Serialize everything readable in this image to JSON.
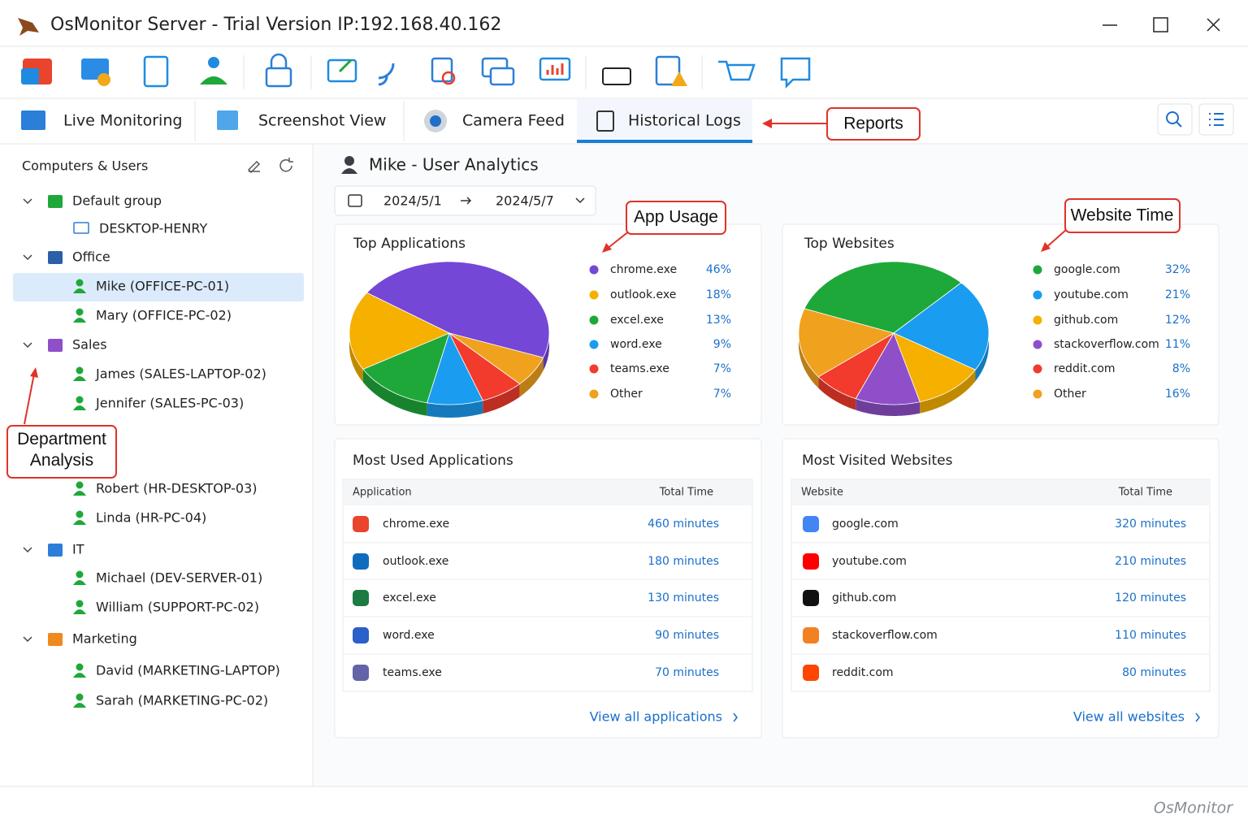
{
  "window": {
    "title": "OsMonitor Server - Trial Version IP:192.168.40.162"
  },
  "tabs": [
    "Live Monitoring",
    "Screenshot View",
    "Camera Feed",
    "Historical Logs"
  ],
  "active_tab": 3,
  "callouts": {
    "reports": "Reports",
    "app_usage": "App Usage",
    "website_time": "Website Time",
    "department_analysis": "Department Analysis"
  },
  "sidebar": {
    "title": "Computers & Users",
    "groups": [
      {
        "name": "Default group",
        "members": [
          "DESKTOP-HENRY"
        ]
      },
      {
        "name": "Office",
        "members": [
          "Mike (OFFICE-PC-01)",
          "Mary (OFFICE-PC-02)"
        ]
      },
      {
        "name": "Sales",
        "members": [
          "James (SALES-LAPTOP-02)",
          "Jennifer (SALES-PC-03)"
        ]
      },
      {
        "members": [
          "Robert (HR-DESKTOP-03)",
          "Linda (HR-PC-04)"
        ]
      },
      {
        "name": "IT",
        "members": [
          "Michael (DEV-SERVER-01)",
          "William (SUPPORT-PC-02)"
        ]
      },
      {
        "name": "Marketing",
        "members": [
          "David (MARKETING-LAPTOP)",
          "Sarah (MARKETING-PC-02)"
        ]
      }
    ]
  },
  "user_analytics": {
    "heading": "Mike - User Analytics",
    "date_from": "2024/5/1",
    "date_to": "2024/5/7"
  },
  "chart_data": [
    {
      "type": "pie",
      "title": "Top Applications",
      "categories": [
        "chrome.exe",
        "outlook.exe",
        "excel.exe",
        "word.exe",
        "teams.exe",
        "Other"
      ],
      "values": [
        46,
        18,
        13,
        9,
        7,
        7
      ],
      "value_labels": [
        "46%",
        "18%",
        "13%",
        "9%",
        "7%",
        "7%"
      ],
      "colors": [
        "#7447d6",
        "#f5b000",
        "#1fa83a",
        "#1a9cf0",
        "#f23b2c",
        "#f0a11e"
      ]
    },
    {
      "type": "pie",
      "title": "Top Websites",
      "categories": [
        "google.com",
        "youtube.com",
        "github.com",
        "stackoverflow.com",
        "reddit.com",
        "Other"
      ],
      "values": [
        32,
        21,
        12,
        11,
        8,
        16
      ],
      "value_labels": [
        "32%",
        "21%",
        "12%",
        "11%",
        "8%",
        "16%"
      ],
      "colors": [
        "#1fa83a",
        "#1a9cf0",
        "#f5b000",
        "#8e4fc9",
        "#f23b2c",
        "#f0a11e"
      ]
    }
  ],
  "tables": [
    {
      "title": "Most Used Applications",
      "columns": [
        "Application",
        "Total Time"
      ],
      "rows": [
        [
          "chrome.exe",
          "460 minutes"
        ],
        [
          "outlook.exe",
          "180 minutes"
        ],
        [
          "excel.exe",
          "130 minutes"
        ],
        [
          "word.exe",
          "90 minutes"
        ],
        [
          "teams.exe",
          "70 minutes"
        ]
      ],
      "link": "View all applications"
    },
    {
      "title": "Most Visited Websites",
      "columns": [
        "Website",
        "Total Time"
      ],
      "rows": [
        [
          "google.com",
          "320 minutes"
        ],
        [
          "youtube.com",
          "210 minutes"
        ],
        [
          "github.com",
          "120 minutes"
        ],
        [
          "stackoverflow.com",
          "110 minutes"
        ],
        [
          "reddit.com",
          "80 minutes"
        ]
      ],
      "link": "View all websites"
    }
  ],
  "footer": {
    "brand": "OsMonitor"
  }
}
